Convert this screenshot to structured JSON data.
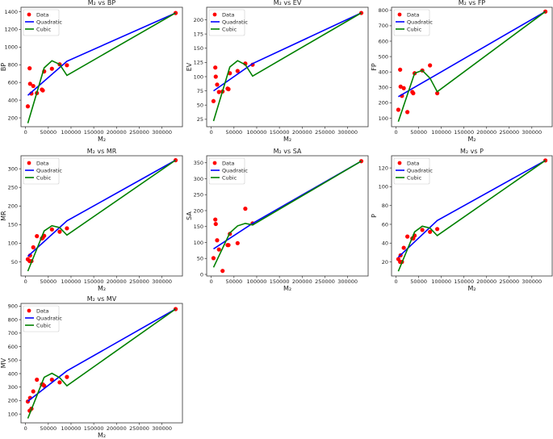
{
  "chart_data": [
    {
      "type": "line",
      "title": "M₂ vs BP",
      "xlabel": "M₂",
      "ylabel": "BP",
      "xlim": [
        -10000,
        345000
      ],
      "ylim": [
        100,
        1450
      ],
      "xticks": [
        0,
        50000,
        100000,
        150000,
        200000,
        250000,
        300000
      ],
      "yticks": [
        200,
        400,
        600,
        800,
        1000,
        1200,
        1400
      ],
      "legend": [
        "Data",
        "Quadratic",
        "Cubic"
      ],
      "legend_position": "top-left",
      "x": [
        5000,
        9000,
        10000,
        13000,
        17000,
        25000,
        36000,
        38000,
        41000,
        58000,
        75000,
        91000,
        330000
      ],
      "y": [
        330,
        760,
        585,
        475,
        560,
        480,
        520,
        510,
        725,
        755,
        805,
        795,
        1385
      ],
      "quadratic": {
        "x": [
          5000,
          91000,
          330000
        ],
        "y": [
          455,
          840,
          1385
        ]
      },
      "cubic": {
        "x": [
          5000,
          41000,
          58000,
          75000,
          91000,
          330000
        ],
        "y": [
          140,
          765,
          845,
          805,
          680,
          1385
        ]
      }
    },
    {
      "type": "line",
      "title": "M₂ vs EV",
      "xlabel": "M₂",
      "ylabel": "EV",
      "xlim": [
        -10000,
        345000
      ],
      "ylim": [
        12,
        222
      ],
      "xticks": [
        0,
        50000,
        100000,
        150000,
        200000,
        250000,
        300000
      ],
      "yticks": [
        25,
        50,
        75,
        100,
        125,
        150,
        175,
        200
      ],
      "legend": [
        "Data",
        "Quadratic",
        "Cubic"
      ],
      "legend_position": "top-left",
      "x": [
        5000,
        9000,
        10000,
        13000,
        17000,
        25000,
        36000,
        38000,
        41000,
        58000,
        75000,
        91000,
        330000
      ],
      "y": [
        57,
        116,
        100,
        86,
        73,
        74,
        79,
        78,
        106,
        110,
        123,
        121,
        212
      ],
      "quadratic": {
        "x": [
          5000,
          91000,
          330000
        ],
        "y": [
          75,
          123,
          212
        ]
      },
      "cubic": {
        "x": [
          5000,
          41000,
          58000,
          75000,
          91000,
          330000
        ],
        "y": [
          22,
          117,
          128,
          121,
          101,
          212
        ]
      }
    },
    {
      "type": "line",
      "title": "M₂ vs FP",
      "xlabel": "M₂",
      "ylabel": "FP",
      "xlim": [
        -10000,
        345000
      ],
      "ylim": [
        45,
        820
      ],
      "xticks": [
        0,
        50000,
        100000,
        150000,
        200000,
        250000,
        300000
      ],
      "yticks": [
        100,
        200,
        300,
        400,
        500,
        600,
        700,
        800
      ],
      "legend": [
        "Data",
        "Quadratic",
        "Cubic"
      ],
      "legend_position": "top-left",
      "x": [
        5000,
        9000,
        10000,
        13000,
        17000,
        25000,
        36000,
        38000,
        41000,
        58000,
        75000,
        91000,
        330000
      ],
      "y": [
        155,
        415,
        305,
        245,
        295,
        140,
        270,
        262,
        392,
        410,
        443,
        262,
        792
      ],
      "quadratic": {
        "x": [
          5000,
          91000,
          330000
        ],
        "y": [
          240,
          386,
          792
        ]
      },
      "cubic": {
        "x": [
          5000,
          41000,
          58000,
          75000,
          91000,
          330000
        ],
        "y": [
          78,
          392,
          410,
          360,
          272,
          792
        ]
      }
    },
    {
      "type": "line",
      "title": "M₂ vs MR",
      "xlabel": "M₂",
      "ylabel": "MR",
      "xlim": [
        -10000,
        345000
      ],
      "ylim": [
        12,
        335
      ],
      "xticks": [
        0,
        50000,
        100000,
        150000,
        200000,
        250000,
        300000
      ],
      "yticks": [
        50,
        100,
        150,
        200,
        250,
        300
      ],
      "legend": [
        "Data",
        "Quadratic",
        "Cubic"
      ],
      "legend_position": "top-left",
      "x": [
        5000,
        9000,
        10000,
        13000,
        17000,
        25000,
        36000,
        38000,
        41000,
        58000,
        75000,
        91000,
        330000
      ],
      "y": [
        57,
        52,
        67,
        52,
        89,
        119,
        113,
        115,
        120,
        137,
        131,
        140,
        323
      ],
      "quadratic": {
        "x": [
          5000,
          91000,
          330000
        ],
        "y": [
          65,
          160,
          323
        ]
      },
      "cubic": {
        "x": [
          5000,
          41000,
          58000,
          75000,
          91000,
          330000
        ],
        "y": [
          25,
          133,
          147,
          142,
          122,
          323
        ]
      }
    },
    {
      "type": "line",
      "title": "M₂ vs SA",
      "xlabel": "M₂",
      "ylabel": "SA",
      "xlim": [
        -10000,
        345000
      ],
      "ylim": [
        -5,
        372
      ],
      "xticks": [
        0,
        50000,
        100000,
        150000,
        200000,
        250000,
        300000
      ],
      "yticks": [
        0,
        50,
        100,
        150,
        200,
        250,
        300,
        350
      ],
      "legend": [
        "Data",
        "Quadratic",
        "Cubic"
      ],
      "legend_position": "top-left",
      "x": [
        5000,
        9000,
        10000,
        13000,
        17000,
        25000,
        36000,
        38000,
        41000,
        58000,
        75000,
        91000,
        330000
      ],
      "y": [
        51,
        172,
        158,
        107,
        78,
        11,
        92,
        92,
        127,
        98,
        206,
        160,
        355
      ],
      "quadratic": {
        "x": [
          5000,
          91000,
          330000
        ],
        "y": [
          80,
          160,
          355
        ]
      },
      "cubic": {
        "x": [
          5000,
          41000,
          58000,
          75000,
          91000,
          330000
        ],
        "y": [
          22,
          130,
          152,
          160,
          155,
          355
        ]
      }
    },
    {
      "type": "line",
      "title": "M₂ vs P",
      "xlabel": "M₂",
      "ylabel": "P",
      "xlim": [
        -10000,
        345000
      ],
      "ylim": [
        5,
        133
      ],
      "xticks": [
        0,
        50000,
        100000,
        150000,
        200000,
        250000,
        300000
      ],
      "yticks": [
        20,
        40,
        60,
        80,
        100,
        120
      ],
      "legend": [
        "Data",
        "Quadratic",
        "Cubic"
      ],
      "legend_position": "top-left",
      "x": [
        5000,
        9000,
        10000,
        13000,
        17000,
        25000,
        36000,
        38000,
        41000,
        58000,
        75000,
        91000,
        330000
      ],
      "y": [
        23,
        20,
        27,
        20,
        35,
        47,
        45,
        45,
        48,
        54,
        52,
        55,
        128
      ],
      "quadratic": {
        "x": [
          5000,
          91000,
          330000
        ],
        "y": [
          25,
          64,
          128
        ]
      },
      "cubic": {
        "x": [
          5000,
          41000,
          58000,
          75000,
          91000,
          330000
        ],
        "y": [
          10,
          52,
          58,
          56,
          48,
          128
        ]
      }
    },
    {
      "type": "line",
      "title": "M₂ vs MV",
      "xlabel": "M₂",
      "ylabel": "MV",
      "xlim": [
        -10000,
        345000
      ],
      "ylim": [
        35,
        920
      ],
      "xticks": [
        0,
        50000,
        100000,
        150000,
        200000,
        250000,
        300000
      ],
      "yticks": [
        100,
        200,
        300,
        400,
        500,
        600,
        700,
        800,
        900
      ],
      "legend": [
        "Data",
        "Quadratic",
        "Cubic"
      ],
      "legend_position": "top-left",
      "x": [
        5000,
        9000,
        10000,
        13000,
        17000,
        25000,
        36000,
        38000,
        41000,
        58000,
        75000,
        91000,
        330000
      ],
      "y": [
        193,
        125,
        220,
        140,
        268,
        355,
        320,
        320,
        310,
        355,
        335,
        375,
        878
      ],
      "quadratic": {
        "x": [
          5000,
          91000,
          330000
        ],
        "y": [
          195,
          420,
          878
        ]
      },
      "cubic": {
        "x": [
          5000,
          41000,
          58000,
          75000,
          91000,
          330000
        ],
        "y": [
          68,
          372,
          403,
          370,
          310,
          878
        ]
      }
    }
  ],
  "colors": {
    "data": "#ff0000",
    "quadratic": "#0000ff",
    "cubic": "#008000"
  }
}
